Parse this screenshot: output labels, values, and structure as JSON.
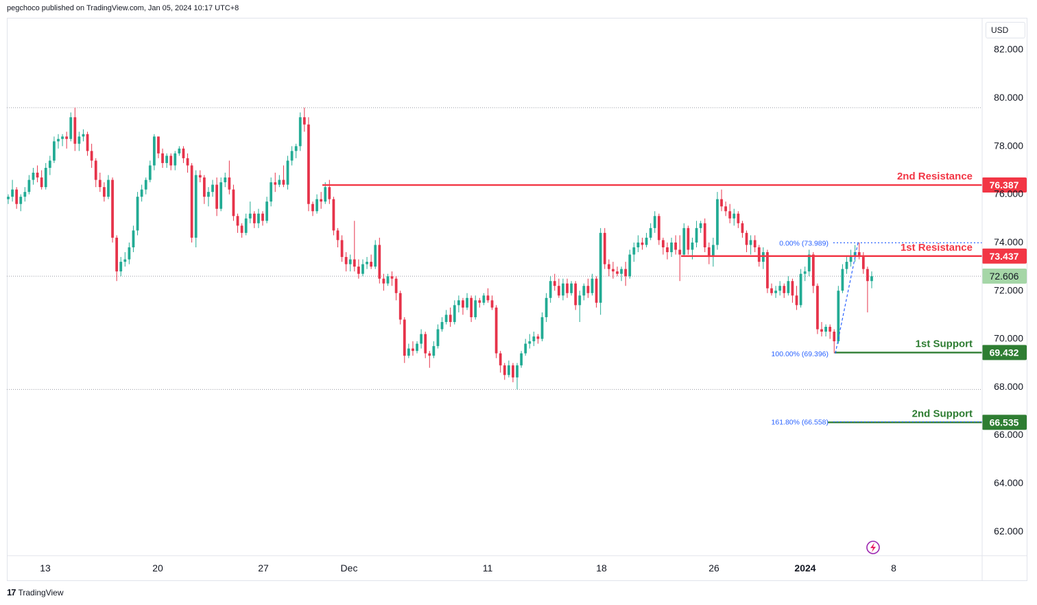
{
  "header": {
    "published_text": "pegchoco published on TradingView.com, Jan 05, 2024 10:17 UTC+8"
  },
  "footer": {
    "brand": "TradingView",
    "logo": "17"
  },
  "currency": "USD",
  "colors": {
    "up": "#22ab94",
    "down": "#e6334a",
    "resistance": "#f23645",
    "support": "#2e7d32",
    "fib": "#2962ff",
    "axis_text": "#131722",
    "grid_dotted": "#9598a1",
    "last_price_bg": "#a5d6a7"
  },
  "chart_data": {
    "type": "candlestick",
    "y_axis": {
      "min": 61.0,
      "max": 83.3,
      "ticks": [
        "82.000",
        "80.000",
        "78.000",
        "76.000",
        "74.000",
        "72.000",
        "70.000",
        "68.000",
        "66.000",
        "64.000",
        "62.000"
      ]
    },
    "x_axis": {
      "labels": [
        "13",
        "20",
        "27",
        "Dec",
        "11",
        "18",
        "26",
        "2024",
        "8"
      ]
    },
    "levels": [
      {
        "name": "2nd Resistance",
        "value": 76.387,
        "label": "76.387",
        "kind": "resistance"
      },
      {
        "name": "1st Resistance",
        "value": 73.437,
        "label": "73.437",
        "kind": "resistance"
      },
      {
        "name": "1st Support",
        "value": 69.432,
        "label": "69.432",
        "kind": "support"
      },
      {
        "name": "2nd Support",
        "value": 66.535,
        "label": "66.535",
        "kind": "support"
      }
    ],
    "last_price": {
      "value": 72.606,
      "label": "72.606"
    },
    "fib_levels": [
      {
        "label": "0.00% (73.989)",
        "value": 73.989
      },
      {
        "label": "100.00% (69.396)",
        "value": 69.396
      },
      {
        "label": "161.80% (66.558)",
        "value": 66.558
      }
    ],
    "reference_lines": [
      79.6,
      72.6,
      67.9
    ],
    "candles": [
      [
        75.8,
        76.0,
        75.6,
        75.9
      ],
      [
        75.9,
        76.6,
        75.7,
        76.2
      ],
      [
        76.2,
        76.3,
        75.4,
        75.6
      ],
      [
        75.6,
        76.0,
        75.3,
        75.9
      ],
      [
        75.9,
        76.3,
        75.7,
        76.1
      ],
      [
        76.1,
        76.8,
        76.0,
        76.6
      ],
      [
        76.6,
        77.1,
        76.4,
        76.9
      ],
      [
        76.9,
        77.2,
        76.5,
        76.7
      ],
      [
        76.7,
        77.0,
        76.2,
        76.3
      ],
      [
        76.3,
        77.3,
        76.2,
        77.1
      ],
      [
        77.1,
        77.6,
        76.8,
        77.4
      ],
      [
        77.4,
        78.4,
        77.3,
        78.2
      ],
      [
        78.2,
        78.5,
        77.9,
        78.3
      ],
      [
        78.3,
        78.5,
        78.0,
        78.4
      ],
      [
        78.4,
        78.6,
        77.9,
        78.3
      ],
      [
        78.3,
        79.4,
        78.2,
        79.2
      ],
      [
        79.2,
        79.6,
        77.8,
        78.1
      ],
      [
        78.1,
        78.6,
        77.8,
        78.4
      ],
      [
        78.4,
        78.7,
        78.2,
        78.5
      ],
      [
        78.5,
        78.6,
        77.6,
        77.8
      ],
      [
        77.8,
        78.1,
        77.1,
        77.4
      ],
      [
        77.4,
        77.5,
        76.3,
        76.6
      ],
      [
        76.6,
        76.9,
        76.1,
        76.3
      ],
      [
        76.3,
        76.5,
        75.7,
        75.9
      ],
      [
        75.9,
        76.8,
        75.8,
        76.6
      ],
      [
        76.6,
        76.7,
        74.0,
        74.2
      ],
      [
        74.2,
        74.3,
        72.4,
        72.8
      ],
      [
        72.8,
        73.4,
        72.6,
        73.2
      ],
      [
        73.2,
        73.6,
        73.0,
        73.3
      ],
      [
        73.3,
        74.0,
        73.1,
        73.8
      ],
      [
        73.8,
        74.7,
        73.6,
        74.5
      ],
      [
        74.5,
        76.1,
        74.3,
        75.9
      ],
      [
        75.9,
        76.4,
        75.7,
        76.2
      ],
      [
        76.2,
        76.7,
        76.0,
        76.6
      ],
      [
        76.6,
        77.4,
        76.5,
        77.2
      ],
      [
        77.2,
        78.5,
        77.0,
        78.4
      ],
      [
        78.4,
        78.4,
        77.5,
        77.7
      ],
      [
        77.7,
        77.9,
        77.1,
        77.3
      ],
      [
        77.3,
        77.7,
        77.1,
        77.6
      ],
      [
        77.6,
        77.7,
        77.0,
        77.2
      ],
      [
        77.2,
        77.8,
        77.0,
        77.7
      ],
      [
        77.7,
        78.0,
        77.6,
        77.9
      ],
      [
        77.9,
        78.0,
        77.3,
        77.5
      ],
      [
        77.5,
        77.7,
        76.9,
        77.2
      ],
      [
        77.2,
        77.3,
        74.0,
        74.2
      ],
      [
        74.2,
        77.0,
        73.8,
        76.8
      ],
      [
        76.8,
        77.0,
        76.5,
        76.7
      ],
      [
        76.7,
        76.8,
        75.6,
        75.9
      ],
      [
        75.9,
        76.3,
        75.5,
        76.1
      ],
      [
        76.1,
        76.6,
        75.9,
        76.4
      ],
      [
        76.4,
        76.7,
        75.1,
        75.4
      ],
      [
        75.4,
        76.7,
        75.3,
        76.5
      ],
      [
        76.5,
        76.9,
        76.3,
        76.7
      ],
      [
        76.7,
        77.4,
        76.0,
        76.2
      ],
      [
        76.2,
        76.4,
        74.9,
        75.1
      ],
      [
        75.1,
        75.2,
        74.4,
        74.7
      ],
      [
        74.7,
        74.8,
        74.2,
        74.4
      ],
      [
        74.4,
        75.2,
        74.3,
        75.0
      ],
      [
        75.0,
        75.7,
        74.8,
        75.2
      ],
      [
        75.2,
        75.3,
        74.6,
        74.8
      ],
      [
        74.8,
        75.4,
        74.6,
        75.2
      ],
      [
        75.2,
        75.3,
        74.7,
        74.9
      ],
      [
        74.9,
        75.9,
        74.8,
        75.7
      ],
      [
        75.7,
        76.7,
        75.5,
        76.5
      ],
      [
        76.5,
        76.9,
        76.1,
        76.4
      ],
      [
        76.4,
        76.8,
        76.3,
        76.6
      ],
      [
        76.6,
        77.2,
        76.3,
        76.4
      ],
      [
        76.4,
        77.6,
        76.2,
        77.4
      ],
      [
        77.4,
        78.0,
        77.2,
        77.8
      ],
      [
        77.8,
        78.1,
        77.5,
        78.0
      ],
      [
        78.0,
        79.4,
        77.8,
        79.2
      ],
      [
        79.2,
        79.6,
        78.6,
        78.9
      ],
      [
        78.9,
        79.2,
        75.3,
        75.6
      ],
      [
        75.6,
        75.7,
        75.1,
        75.3
      ],
      [
        75.3,
        76.0,
        75.2,
        75.8
      ],
      [
        75.8,
        76.1,
        75.4,
        75.7
      ],
      [
        75.7,
        76.5,
        75.6,
        76.3
      ],
      [
        76.3,
        76.6,
        75.6,
        75.8
      ],
      [
        75.8,
        75.9,
        74.3,
        74.5
      ],
      [
        74.5,
        74.6,
        73.8,
        74.1
      ],
      [
        74.1,
        74.3,
        73.2,
        73.4
      ],
      [
        73.4,
        73.6,
        72.8,
        73.1
      ],
      [
        73.1,
        73.5,
        72.8,
        73.3
      ],
      [
        73.3,
        74.9,
        72.8,
        73.0
      ],
      [
        73.0,
        73.3,
        72.5,
        72.7
      ],
      [
        72.7,
        73.3,
        72.6,
        73.1
      ],
      [
        73.1,
        73.4,
        72.9,
        73.2
      ],
      [
        73.2,
        73.5,
        72.9,
        73.0
      ],
      [
        73.0,
        74.1,
        72.9,
        73.9
      ],
      [
        73.9,
        74.2,
        72.3,
        72.5
      ],
      [
        72.5,
        72.7,
        72.0,
        72.3
      ],
      [
        72.3,
        72.7,
        72.2,
        72.6
      ],
      [
        72.6,
        72.8,
        72.2,
        72.5
      ],
      [
        72.5,
        72.6,
        71.6,
        71.9
      ],
      [
        71.9,
        72.0,
        70.6,
        70.8
      ],
      [
        70.8,
        70.9,
        69.0,
        69.3
      ],
      [
        69.3,
        69.8,
        69.2,
        69.6
      ],
      [
        69.6,
        69.9,
        69.3,
        69.5
      ],
      [
        69.5,
        69.9,
        69.4,
        69.8
      ],
      [
        69.8,
        70.4,
        69.6,
        70.2
      ],
      [
        70.2,
        70.3,
        69.2,
        69.4
      ],
      [
        69.4,
        69.5,
        68.8,
        69.3
      ],
      [
        69.3,
        69.9,
        69.2,
        69.7
      ],
      [
        69.7,
        70.6,
        69.6,
        70.4
      ],
      [
        70.4,
        70.9,
        70.3,
        70.7
      ],
      [
        70.7,
        71.2,
        70.6,
        71.0
      ],
      [
        71.0,
        71.3,
        70.5,
        70.7
      ],
      [
        70.7,
        71.6,
        70.6,
        71.4
      ],
      [
        71.4,
        71.8,
        71.1,
        71.6
      ],
      [
        71.6,
        71.7,
        71.0,
        71.3
      ],
      [
        71.3,
        71.9,
        71.2,
        71.7
      ],
      [
        71.7,
        71.8,
        70.7,
        70.9
      ],
      [
        70.9,
        71.8,
        70.8,
        71.6
      ],
      [
        71.6,
        71.7,
        71.3,
        71.5
      ],
      [
        71.5,
        71.9,
        71.4,
        71.8
      ],
      [
        71.8,
        72.1,
        71.5,
        71.6
      ],
      [
        71.6,
        71.8,
        71.2,
        71.3
      ],
      [
        71.3,
        71.4,
        69.2,
        69.4
      ],
      [
        69.4,
        69.5,
        68.6,
        68.9
      ],
      [
        68.9,
        69.0,
        68.3,
        68.5
      ],
      [
        68.5,
        69.1,
        68.4,
        68.9
      ],
      [
        68.9,
        69.0,
        68.2,
        68.4
      ],
      [
        68.4,
        69.0,
        67.9,
        68.9
      ],
      [
        68.9,
        69.5,
        68.8,
        69.4
      ],
      [
        69.4,
        70.0,
        69.3,
        69.8
      ],
      [
        69.8,
        70.2,
        69.6,
        69.9
      ],
      [
        69.9,
        70.3,
        69.7,
        70.1
      ],
      [
        70.1,
        70.2,
        69.8,
        70.0
      ],
      [
        70.0,
        71.1,
        69.9,
        70.9
      ],
      [
        70.9,
        71.9,
        70.7,
        71.7
      ],
      [
        71.7,
        72.6,
        71.5,
        72.4
      ],
      [
        72.4,
        72.7,
        72.0,
        72.2
      ],
      [
        72.2,
        72.5,
        71.7,
        71.8
      ],
      [
        71.8,
        72.5,
        71.6,
        72.3
      ],
      [
        72.3,
        72.5,
        71.7,
        71.9
      ],
      [
        71.9,
        72.4,
        71.8,
        72.3
      ],
      [
        72.3,
        72.4,
        71.2,
        71.4
      ],
      [
        71.4,
        72.0,
        70.7,
        71.8
      ],
      [
        71.8,
        72.3,
        71.6,
        72.2
      ],
      [
        72.2,
        72.5,
        71.7,
        71.9
      ],
      [
        71.9,
        72.7,
        71.8,
        72.5
      ],
      [
        72.5,
        72.6,
        71.3,
        71.5
      ],
      [
        71.5,
        74.6,
        71.0,
        74.4
      ],
      [
        74.4,
        74.6,
        72.9,
        73.1
      ],
      [
        73.1,
        73.3,
        72.6,
        72.9
      ],
      [
        72.9,
        73.2,
        72.5,
        72.8
      ],
      [
        72.8,
        73.0,
        72.6,
        72.7
      ],
      [
        72.7,
        73.0,
        72.4,
        72.9
      ],
      [
        72.9,
        73.2,
        72.2,
        72.6
      ],
      [
        72.6,
        73.7,
        72.5,
        73.5
      ],
      [
        73.5,
        74.0,
        73.2,
        73.8
      ],
      [
        73.8,
        74.3,
        73.6,
        74.0
      ],
      [
        74.0,
        74.2,
        73.7,
        73.9
      ],
      [
        73.9,
        74.4,
        73.8,
        74.2
      ],
      [
        74.2,
        74.8,
        74.1,
        74.6
      ],
      [
        74.6,
        75.3,
        74.4,
        75.1
      ],
      [
        75.1,
        75.2,
        73.9,
        74.1
      ],
      [
        74.1,
        74.2,
        73.5,
        73.8
      ],
      [
        73.8,
        74.0,
        73.3,
        73.6
      ],
      [
        73.6,
        74.2,
        73.4,
        74.0
      ],
      [
        74.0,
        74.3,
        73.5,
        73.7
      ],
      [
        73.7,
        74.3,
        72.4,
        73.5
      ],
      [
        73.5,
        74.8,
        73.4,
        74.6
      ],
      [
        74.6,
        74.7,
        73.5,
        73.7
      ],
      [
        73.7,
        74.2,
        73.3,
        74.0
      ],
      [
        74.0,
        74.9,
        73.8,
        74.6
      ],
      [
        74.6,
        74.9,
        74.4,
        74.8
      ],
      [
        74.8,
        75.0,
        73.6,
        73.8
      ],
      [
        73.8,
        74.0,
        73.1,
        73.4
      ],
      [
        73.4,
        74.2,
        73.0,
        73.9
      ],
      [
        73.9,
        76.1,
        73.7,
        75.8
      ],
      [
        75.8,
        76.2,
        75.3,
        75.5
      ],
      [
        75.5,
        75.7,
        75.1,
        75.3
      ],
      [
        75.3,
        75.6,
        74.8,
        75.0
      ],
      [
        75.0,
        75.4,
        74.7,
        75.2
      ],
      [
        75.2,
        75.3,
        74.6,
        74.8
      ],
      [
        74.8,
        74.9,
        74.2,
        74.4
      ],
      [
        74.4,
        74.5,
        73.6,
        73.9
      ],
      [
        73.9,
        74.3,
        73.5,
        74.1
      ],
      [
        74.1,
        74.3,
        73.6,
        73.8
      ],
      [
        73.8,
        73.9,
        73.0,
        73.2
      ],
      [
        73.2,
        73.8,
        72.9,
        73.6
      ],
      [
        73.6,
        73.7,
        71.9,
        72.1
      ],
      [
        72.1,
        72.3,
        71.8,
        71.9
      ],
      [
        71.9,
        72.2,
        71.7,
        72.0
      ],
      [
        72.0,
        72.4,
        71.8,
        72.2
      ],
      [
        72.2,
        72.3,
        71.7,
        71.9
      ],
      [
        71.9,
        72.6,
        71.8,
        72.4
      ],
      [
        72.4,
        72.5,
        71.5,
        71.8
      ],
      [
        71.8,
        72.2,
        71.2,
        71.4
      ],
      [
        71.4,
        72.9,
        71.3,
        72.7
      ],
      [
        72.7,
        73.0,
        72.4,
        72.8
      ],
      [
        72.8,
        73.7,
        72.6,
        73.5
      ],
      [
        73.5,
        73.6,
        71.9,
        72.2
      ],
      [
        72.2,
        72.3,
        70.2,
        70.4
      ],
      [
        70.4,
        70.7,
        70.1,
        70.3
      ],
      [
        70.3,
        70.6,
        70.1,
        70.5
      ],
      [
        70.5,
        70.6,
        70.0,
        70.3
      ],
      [
        70.3,
        70.4,
        69.4,
        69.9
      ],
      [
        69.9,
        72.2,
        69.8,
        72.0
      ],
      [
        72.0,
        73.1,
        71.9,
        72.9
      ],
      [
        72.9,
        73.4,
        72.7,
        73.2
      ],
      [
        73.2,
        73.7,
        73.0,
        73.4
      ],
      [
        73.4,
        73.9,
        73.2,
        73.6
      ],
      [
        73.6,
        74.0,
        73.3,
        73.4
      ],
      [
        73.4,
        73.6,
        72.7,
        72.9
      ],
      [
        72.9,
        73.0,
        71.1,
        72.4
      ],
      [
        72.4,
        72.8,
        72.1,
        72.6
      ]
    ]
  }
}
